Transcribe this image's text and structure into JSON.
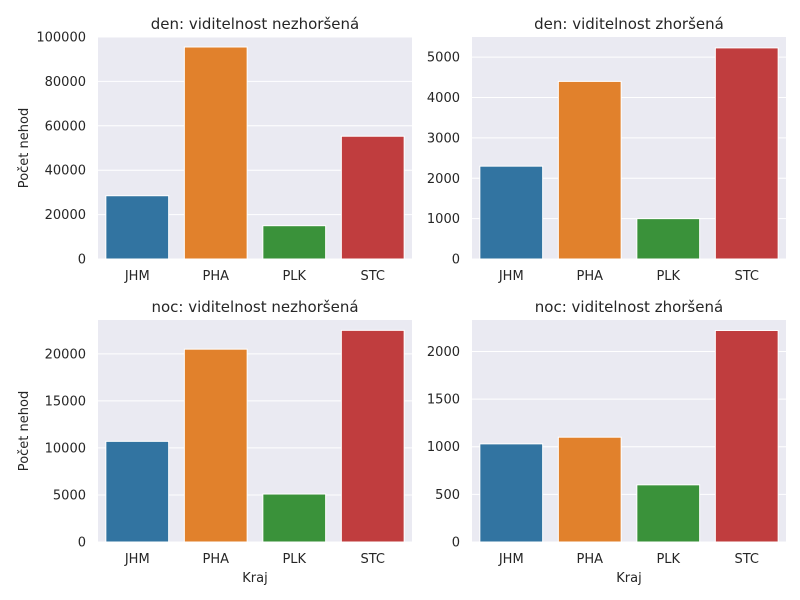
{
  "x_axis_label": "Kraj",
  "y_axis_label": "Počet nehod",
  "colors": {
    "background": "#ffffff",
    "plot_area": "#eaeaf2",
    "grid": "#ffffff",
    "JHM": "#3274a1",
    "PHA": "#e1812c",
    "PLK": "#3a923a",
    "STC": "#c03d3e"
  },
  "chart_data": [
    {
      "type": "bar",
      "title": "den: viditelnost nezhoršená",
      "categories": [
        "JHM",
        "PHA",
        "PLK",
        "STC"
      ],
      "values": [
        28500,
        95500,
        15000,
        55300
      ],
      "ylim": [
        0,
        100000
      ],
      "yticks": [
        0,
        20000,
        40000,
        60000,
        80000,
        100000
      ],
      "ylabel": "Počet nehod",
      "xlabel": "",
      "grid": true
    },
    {
      "type": "bar",
      "title": "den: viditelnost zhoršená",
      "categories": [
        "JHM",
        "PHA",
        "PLK",
        "STC"
      ],
      "values": [
        2300,
        4400,
        1000,
        5230
      ],
      "ylim": [
        0,
        5500
      ],
      "yticks": [
        0,
        1000,
        2000,
        3000,
        4000,
        5000
      ],
      "ylabel": "",
      "xlabel": "",
      "grid": true
    },
    {
      "type": "bar",
      "title": "noc: viditelnost nezhoršená",
      "categories": [
        "JHM",
        "PHA",
        "PLK",
        "STC"
      ],
      "values": [
        10700,
        20500,
        5100,
        22500
      ],
      "ylim": [
        0,
        23600
      ],
      "yticks": [
        0,
        5000,
        10000,
        15000,
        20000
      ],
      "ylabel": "Počet nehod",
      "xlabel": "Kraj",
      "grid": true
    },
    {
      "type": "bar",
      "title": "noc: viditelnost zhoršená",
      "categories": [
        "JHM",
        "PHA",
        "PLK",
        "STC"
      ],
      "values": [
        1030,
        1100,
        600,
        2220
      ],
      "ylim": [
        0,
        2330
      ],
      "yticks": [
        0,
        500,
        1000,
        1500,
        2000
      ],
      "ylabel": "",
      "xlabel": "Kraj",
      "grid": true
    }
  ]
}
